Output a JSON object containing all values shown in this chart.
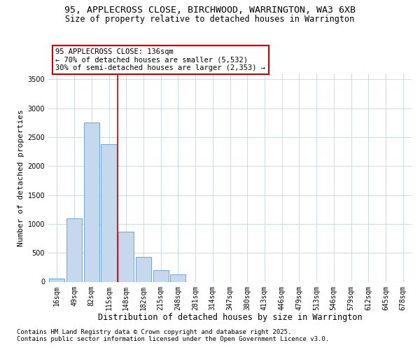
{
  "title1": "95, APPLECROSS CLOSE, BIRCHWOOD, WARRINGTON, WA3 6XB",
  "title2": "Size of property relative to detached houses in Warrington",
  "xlabel": "Distribution of detached houses by size in Warrington",
  "ylabel": "Number of detached properties",
  "categories": [
    "16sqm",
    "49sqm",
    "82sqm",
    "115sqm",
    "148sqm",
    "182sqm",
    "215sqm",
    "248sqm",
    "281sqm",
    "314sqm",
    "347sqm",
    "380sqm",
    "413sqm",
    "446sqm",
    "479sqm",
    "513sqm",
    "546sqm",
    "579sqm",
    "612sqm",
    "645sqm",
    "678sqm"
  ],
  "values": [
    60,
    1100,
    2750,
    2380,
    870,
    430,
    200,
    130,
    0,
    0,
    0,
    0,
    0,
    0,
    0,
    0,
    0,
    0,
    0,
    0,
    0
  ],
  "bar_color": "#c5d8ee",
  "bar_edge_color": "#5b9bd5",
  "vline_color": "#cc0000",
  "vline_x_index": 3.5,
  "annotation_text": "95 APPLECROSS CLOSE: 136sqm\n← 70% of detached houses are smaller (5,532)\n30% of semi-detached houses are larger (2,353) →",
  "annotation_box_facecolor": "#ffffff",
  "annotation_box_edgecolor": "#cc0000",
  "ylim_max": 3600,
  "yticks": [
    0,
    500,
    1000,
    1500,
    2000,
    2500,
    3000,
    3500
  ],
  "plot_bg": "#ffffff",
  "fig_bg": "#ffffff",
  "grid_color": "#d0dce8",
  "title1_fontsize": 9.5,
  "title2_fontsize": 8.5,
  "tick_fontsize": 7,
  "ylabel_fontsize": 8,
  "xlabel_fontsize": 8.5,
  "ann_fontsize": 7.5,
  "footnote1": "Contains HM Land Registry data © Crown copyright and database right 2025.",
  "footnote2": "Contains public sector information licensed under the Open Government Licence v3.0.",
  "footnote_fontsize": 6.5
}
